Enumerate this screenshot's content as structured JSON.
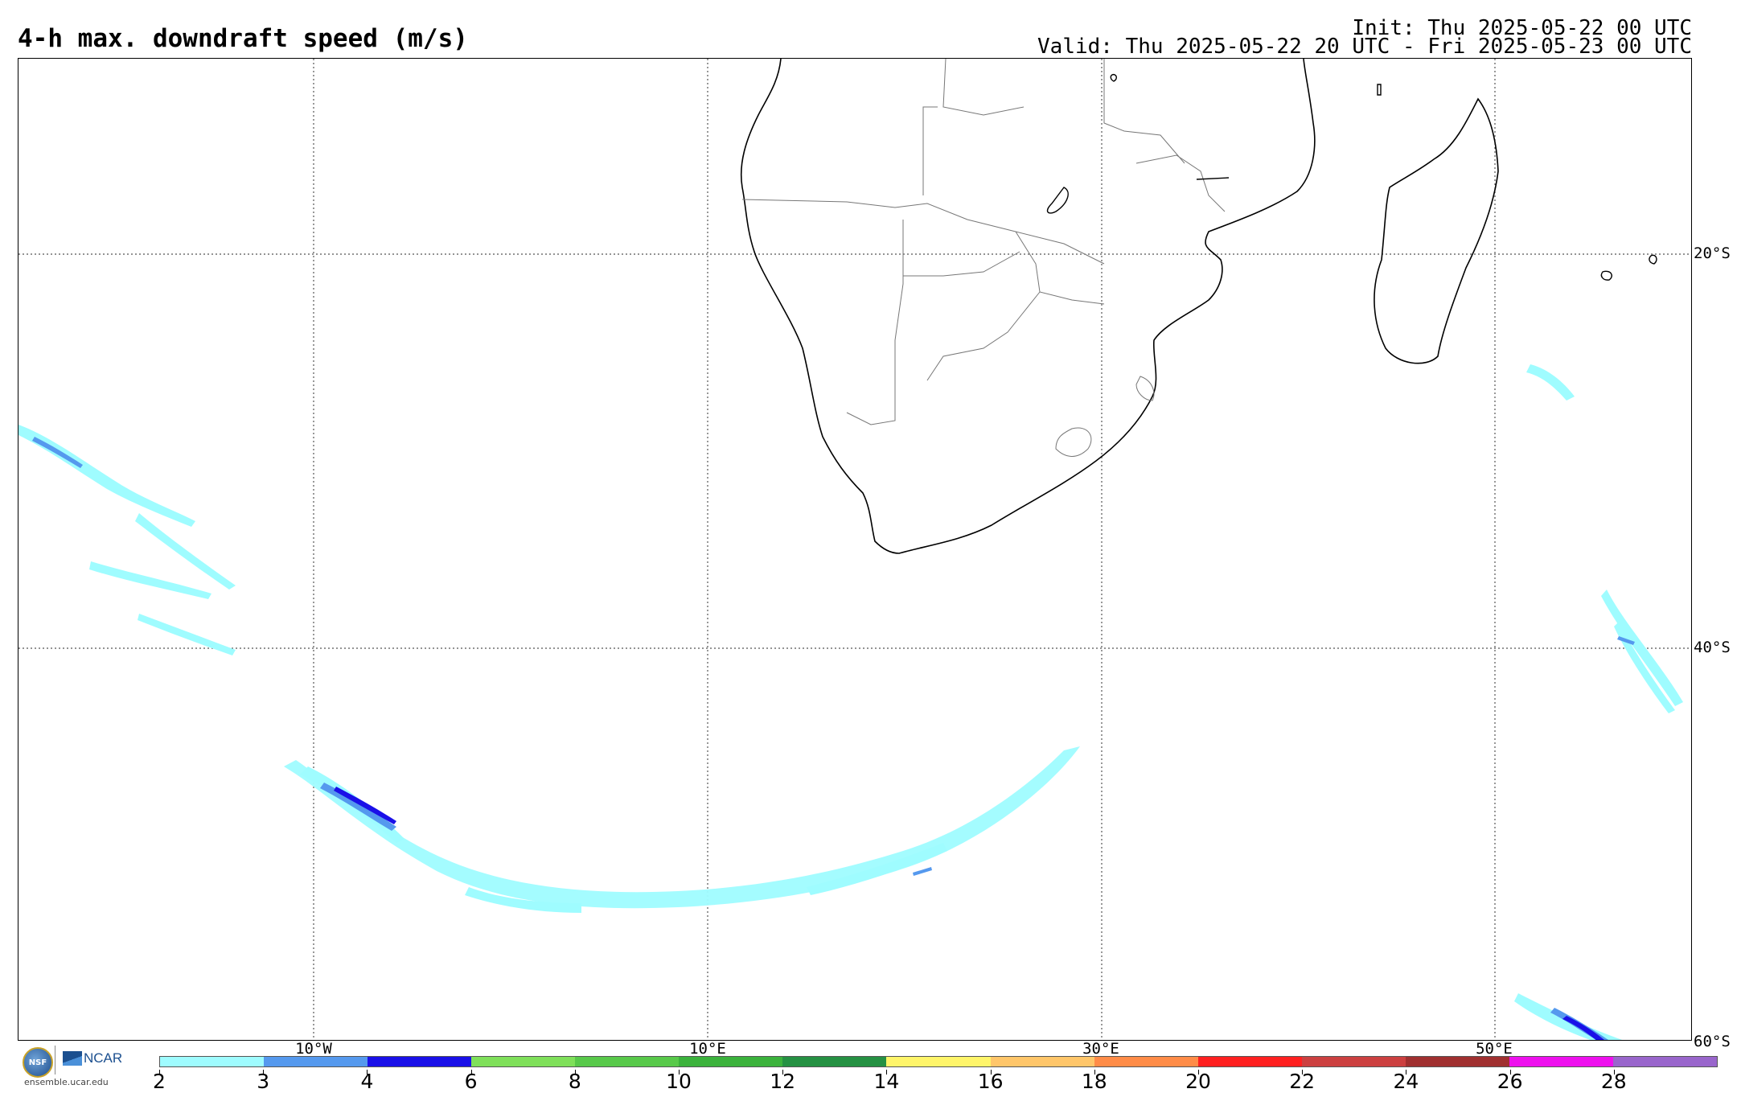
{
  "header": {
    "title": "4-h max. downdraft speed (m/s)",
    "init": "Init: Thu 2025-05-22 00 UTC",
    "valid": "Valid: Thu 2025-05-22 20 UTC - Fri 2025-05-23 00 UTC"
  },
  "map": {
    "lat_labels": [
      "20°S",
      "40°S",
      "60°S"
    ],
    "lon_labels": [
      "10°W",
      "10°E",
      "30°E",
      "50°E"
    ],
    "land_color": "#ffffff",
    "coast_color": "#000000",
    "border_color": "#777777",
    "grid_style": "dotted"
  },
  "colorbar": {
    "levels": [
      "2",
      "3",
      "4",
      "6",
      "8",
      "10",
      "12",
      "14",
      "16",
      "18",
      "20",
      "22",
      "24",
      "26",
      "28"
    ],
    "colors": [
      "#9ffcff",
      "#5599ee",
      "#1a10e8",
      "#7fe05a",
      "#58c94a",
      "#3bb23c",
      "#259143",
      "#fff56a",
      "#ffc66a",
      "#ff8c48",
      "#ff2020",
      "#cc4040",
      "#a03030",
      "#ee10ee",
      "#9966cc"
    ]
  },
  "logos": {
    "nsf": "NSF",
    "ncar": "NCAR",
    "url": "ensemble.ucar.edu"
  }
}
